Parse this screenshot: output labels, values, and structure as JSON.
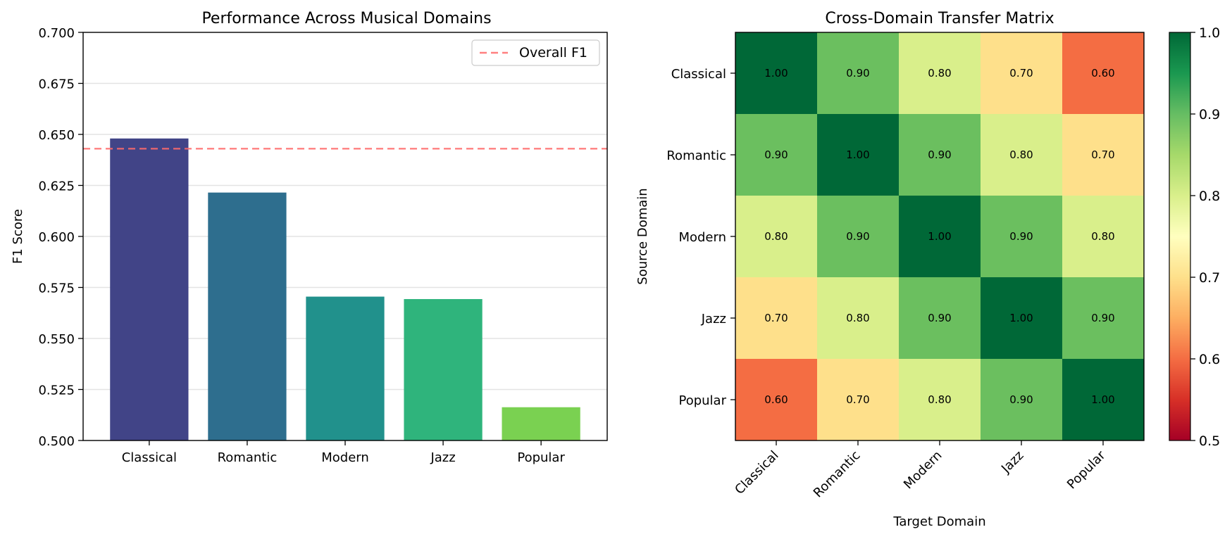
{
  "chart_data": [
    {
      "type": "bar",
      "title": "Performance Across Musical Domains",
      "ylabel": "F1 Score",
      "xlabel": "",
      "categories": [
        "Classical",
        "Romantic",
        "Modern",
        "Jazz",
        "Popular"
      ],
      "values": [
        0.648,
        0.6215,
        0.5705,
        0.5693,
        0.5163
      ],
      "bar_colors": [
        "#414487",
        "#2e6e8e",
        "#21918c",
        "#2fb47c",
        "#7ad151"
      ],
      "ylim": [
        0.5,
        0.7
      ],
      "yticks": [
        "0.500",
        "0.525",
        "0.550",
        "0.575",
        "0.600",
        "0.625",
        "0.650",
        "0.675",
        "0.700"
      ],
      "reference_line": {
        "label": "Overall F1",
        "value": 0.643,
        "color": "#ff6b6b",
        "style": "dashed"
      },
      "legend": {
        "position": "top-right"
      },
      "grid": "y"
    },
    {
      "type": "heatmap",
      "title": "Cross-Domain Transfer Matrix",
      "xlabel": "Target Domain",
      "ylabel": "Source Domain",
      "x_categories": [
        "Classical",
        "Romantic",
        "Modern",
        "Jazz",
        "Popular"
      ],
      "y_categories": [
        "Classical",
        "Romantic",
        "Modern",
        "Jazz",
        "Popular"
      ],
      "values": [
        [
          1.0,
          0.9,
          0.8,
          0.7,
          0.6
        ],
        [
          0.9,
          1.0,
          0.9,
          0.8,
          0.7
        ],
        [
          0.8,
          0.9,
          1.0,
          0.9,
          0.8
        ],
        [
          0.7,
          0.8,
          0.9,
          1.0,
          0.9
        ],
        [
          0.6,
          0.7,
          0.8,
          0.9,
          1.0
        ]
      ],
      "colormap": "RdYlGn",
      "vmin": 0.5,
      "vmax": 1.0,
      "colorbar_ticks": [
        "0.5",
        "0.6",
        "0.7",
        "0.8",
        "0.9",
        "1.0"
      ],
      "cell_colors": {
        "1.00": "#006837",
        "0.90": "#6bbf5f",
        "0.80": "#d9ef8b",
        "0.70": "#fee08b",
        "0.60": "#f46d43"
      }
    }
  ]
}
